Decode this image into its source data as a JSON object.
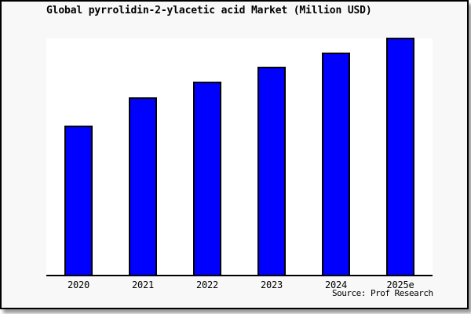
{
  "chart_data": {
    "type": "bar",
    "title": "Global pyrrolidin-2-ylacetic acid Market (Million USD)",
    "categories": [
      "2020",
      "2021",
      "2022",
      "2023",
      "2024",
      "2025e"
    ],
    "values": [
      190,
      226,
      246,
      265,
      283,
      302
    ],
    "values_note": "y-axis has no tick labels or gridlines; values are relative bar heights in screen pixels (steadily growing market, 2025e is estimate)",
    "xlabel": "",
    "ylabel": "",
    "grid": false,
    "legend": false,
    "bar_color": "#0000ff",
    "bar_border_color": "#000000",
    "plot_background": "#ffffff",
    "frame_background": "#f8f8f8",
    "frame_border_color": "#000000"
  },
  "footer": {
    "source": "Source: Prof Research"
  }
}
